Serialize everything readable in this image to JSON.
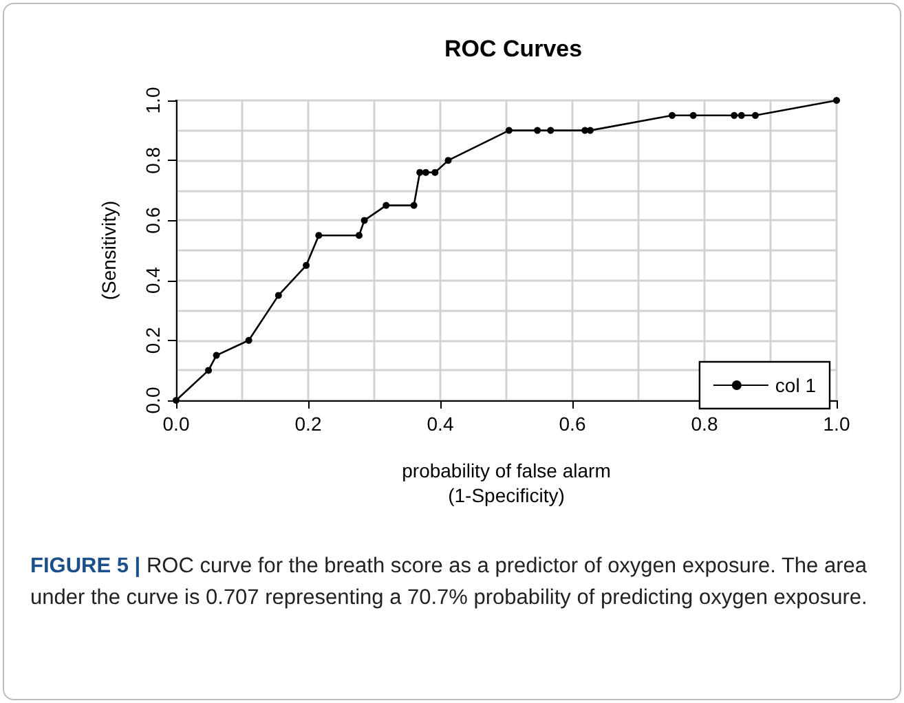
{
  "chart_data": {
    "type": "line",
    "title": "ROC Curves",
    "xlabel": "probability of false alarm\n(1-Specificity)",
    "ylabel": "(Sensitivity)",
    "x": [
      0,
      0.049,
      0.061,
      0.11,
      0.155,
      0.197,
      0.216,
      0.277,
      0.285,
      0.318,
      0.36,
      0.369,
      0.378,
      0.392,
      0.412,
      0.504,
      0.547,
      0.567,
      0.619,
      0.627,
      0.751,
      0.783,
      0.845,
      0.856,
      0.877,
      1.0
    ],
    "series": [
      {
        "name": "col 1",
        "color": "#000000",
        "values": [
          0,
          0.1,
          0.15,
          0.2,
          0.35,
          0.45,
          0.55,
          0.55,
          0.6,
          0.65,
          0.65,
          0.76,
          0.76,
          0.76,
          0.8,
          0.9,
          0.9,
          0.9,
          0.9,
          0.9,
          0.95,
          0.95,
          0.95,
          0.95,
          0.95,
          1.0
        ]
      }
    ],
    "xlim": [
      0,
      1
    ],
    "ylim": [
      0,
      1
    ],
    "xticks": [
      {
        "value": 0,
        "label": "0.0"
      },
      0.2,
      0.4,
      0.6,
      0.8,
      {
        "value": 1,
        "label": "1.0"
      }
    ],
    "yticks": [
      {
        "value": 0,
        "label": "0.0"
      },
      0.2,
      0.4,
      0.6,
      0.8,
      {
        "value": 1,
        "label": "1.0"
      }
    ],
    "grid": true,
    "legend": "bottom right",
    "marker": "circle",
    "line_style": "solid",
    "annotations": [
      "FIGURE 5 | ROC curve for the breath score as a predictor of oxygen exposure. The area under the curve is 0.707 representing a 70.7% probability of predicting oxygen exposure."
    ]
  }
}
